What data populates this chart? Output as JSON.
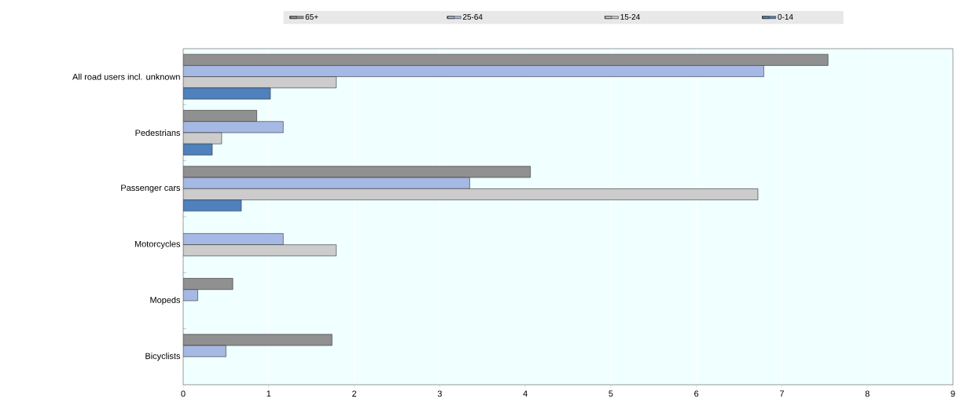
{
  "chart_data": {
    "type": "bar",
    "orientation": "horizontal",
    "categories": [
      "All road users incl. unknown",
      "Pedestrians",
      "Passenger cars",
      "Motorcycles",
      "Mopeds",
      "Bicyclists"
    ],
    "series": [
      {
        "name": "65+",
        "color": "#909090",
        "values": [
          7.54,
          0.86,
          4.06,
          null,
          0.58,
          1.74
        ]
      },
      {
        "name": "25-64",
        "color": "#a6b9e4",
        "values": [
          6.79,
          1.17,
          3.35,
          1.17,
          0.17,
          0.5
        ]
      },
      {
        "name": "15-24",
        "color": "#cccccc",
        "values": [
          1.79,
          0.45,
          6.72,
          1.79,
          null,
          null
        ]
      },
      {
        "name": "0-14",
        "color": "#4e81bd",
        "values": [
          1.02,
          0.34,
          0.68,
          null,
          null,
          null
        ]
      }
    ],
    "xlim": [
      0,
      9
    ],
    "xticks": [
      0,
      1,
      2,
      3,
      4,
      5,
      6,
      7,
      8,
      9
    ],
    "grid": "x",
    "legend": "top"
  }
}
